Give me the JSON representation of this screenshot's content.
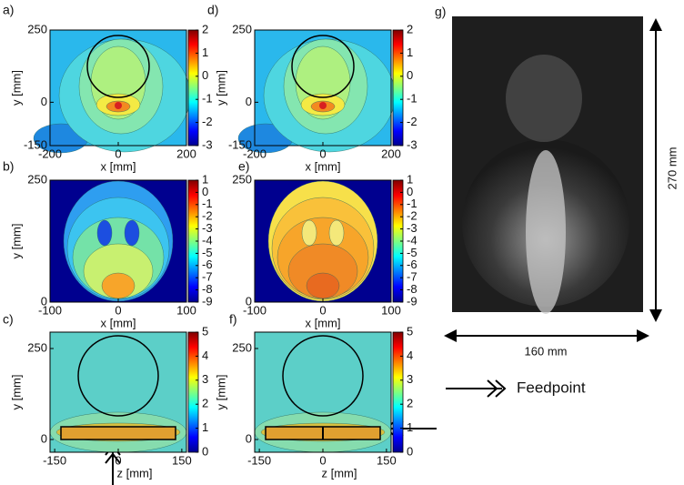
{
  "panels": [
    {
      "label": "a)",
      "xlabel": "x [mm]",
      "ylabel": "y [mm]",
      "xlim": [
        -200,
        200
      ],
      "ylim": [
        -150,
        250
      ],
      "xticks": [
        -200,
        0,
        200
      ],
      "yticks": [
        -150,
        0,
        250
      ],
      "colorbar": {
        "lim": [
          -3,
          2
        ],
        "ticks": [
          -3,
          -2,
          -1,
          0,
          1,
          2
        ]
      }
    },
    {
      "label": "d)",
      "xlabel": "x [mm]",
      "ylabel": "y [mm]",
      "xlim": [
        -200,
        200
      ],
      "ylim": [
        -150,
        250
      ],
      "xticks": [
        -200,
        0,
        200
      ],
      "yticks": [
        -150,
        0,
        250
      ],
      "colorbar": {
        "lim": [
          -3,
          2
        ],
        "ticks": [
          -3,
          -2,
          -1,
          0,
          1,
          2
        ]
      }
    },
    {
      "label": "b)",
      "xlabel": "x [mm]",
      "ylabel": "y [mm]",
      "xlim": [
        -100,
        100
      ],
      "ylim": [
        0,
        250
      ],
      "xticks": [
        -100,
        0,
        100
      ],
      "yticks": [
        0,
        250
      ],
      "colorbar": {
        "lim": [
          -9,
          1
        ],
        "ticks": [
          -9,
          -8,
          -7,
          -6,
          -5,
          -4,
          -3,
          -2,
          -1,
          0,
          1
        ]
      }
    },
    {
      "label": "e)",
      "xlabel": "x [mm]",
      "xlim": [
        -100,
        100
      ],
      "ylim": [
        0,
        250
      ],
      "xticks": [
        -100,
        0,
        100
      ],
      "yticks": [
        0,
        250
      ],
      "colorbar": {
        "lim": [
          -9,
          1
        ],
        "ticks": [
          -9,
          -8,
          -7,
          -6,
          -5,
          -4,
          -3,
          -2,
          -1,
          0,
          1
        ]
      }
    },
    {
      "label": "c)",
      "xlabel": "z [mm]",
      "ylabel": "y [mm]",
      "xlim": [
        -161,
        161
      ],
      "ylim": [
        -35,
        295
      ],
      "xticks": [
        -150,
        0,
        150
      ],
      "yticks": [
        0,
        250
      ],
      "colorbar": {
        "lim": [
          0,
          5
        ],
        "ticks": [
          0,
          1,
          2,
          3,
          4,
          5
        ]
      }
    },
    {
      "label": "f)",
      "xlabel": "z [mm]",
      "ylabel": "y [mm]",
      "xlim": [
        -161,
        161
      ],
      "ylim": [
        -35,
        295
      ],
      "xticks": [
        -150,
        0,
        150
      ],
      "yticks": [
        0,
        250
      ],
      "colorbar": {
        "lim": [
          0,
          5
        ],
        "ticks": [
          0,
          1,
          2,
          3,
          4,
          5
        ]
      }
    }
  ],
  "photo": {
    "label": "g)",
    "height_label": "270 mm",
    "width_label": "160 mm"
  },
  "legend": {
    "label": "Feedpoint"
  }
}
